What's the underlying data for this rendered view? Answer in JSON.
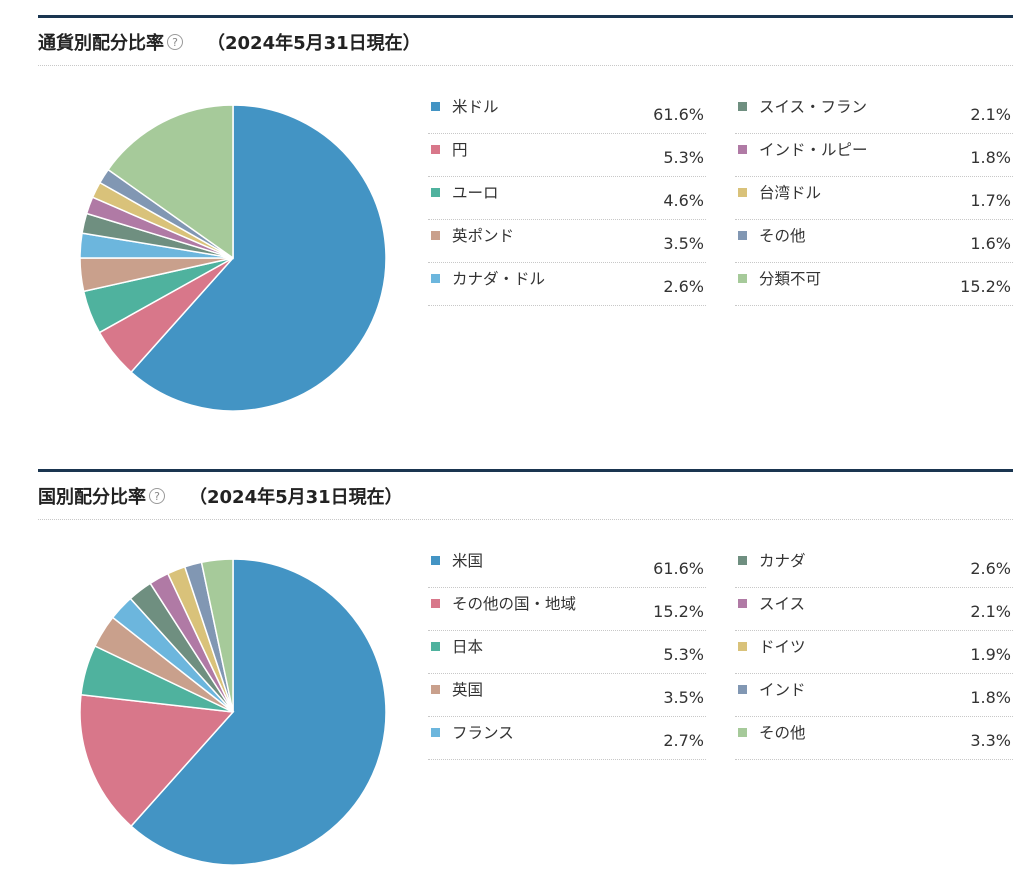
{
  "sections": [
    {
      "title": "通貨別配分比率",
      "help_icon": "question-circle-icon",
      "date": "（2024年5月31日現在）",
      "chart_data": {
        "type": "pie",
        "categories": [
          "米ドル",
          "円",
          "ユーロ",
          "英ポンド",
          "カナダ・ドル",
          "スイス・フラン",
          "インド・ルピー",
          "台湾ドル",
          "その他",
          "分類不可"
        ],
        "values": [
          61.6,
          5.3,
          4.6,
          3.5,
          2.6,
          2.1,
          1.8,
          1.7,
          1.6,
          15.2
        ],
        "value_labels": [
          "61.6%",
          "5.3%",
          "4.6%",
          "3.5%",
          "2.6%",
          "2.1%",
          "1.8%",
          "1.7%",
          "1.6%",
          "15.2%"
        ],
        "colors": [
          "#4394c4",
          "#d8778a",
          "#4fb29e",
          "#c9a08c",
          "#6cb6dd",
          "#6f8f80",
          "#b07aa5",
          "#d9c27a",
          "#8197b3",
          "#a6ca9a"
        ],
        "legend": "right, two columns"
      }
    },
    {
      "title": "国別配分比率",
      "help_icon": "question-circle-icon",
      "date": "（2024年5月31日現在）",
      "chart_data": {
        "type": "pie",
        "categories": [
          "米国",
          "その他の国・地域",
          "日本",
          "英国",
          "フランス",
          "カナダ",
          "スイス",
          "ドイツ",
          "インド",
          "その他"
        ],
        "values": [
          61.6,
          15.2,
          5.3,
          3.5,
          2.7,
          2.6,
          2.1,
          1.9,
          1.8,
          3.3
        ],
        "value_labels": [
          "61.6%",
          "15.2%",
          "5.3%",
          "3.5%",
          "2.7%",
          "2.6%",
          "2.1%",
          "1.9%",
          "1.8%",
          "3.3%"
        ],
        "colors": [
          "#4394c4",
          "#d8778a",
          "#4fb29e",
          "#c9a08c",
          "#6cb6dd",
          "#6f8f80",
          "#b07aa5",
          "#d9c27a",
          "#8197b3",
          "#a6ca9a"
        ],
        "legend": "right, two columns"
      }
    }
  ]
}
